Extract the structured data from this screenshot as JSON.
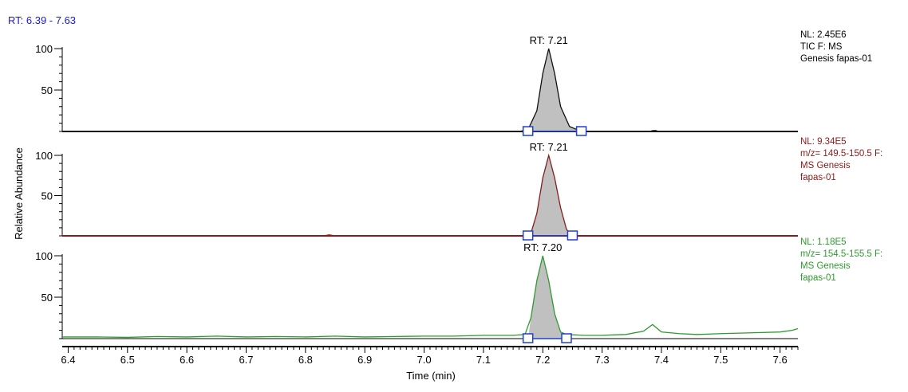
{
  "rt_range": "RT: 6.39 - 7.63",
  "ylabel": "Relative Abundance",
  "colors": {
    "rt_range_text": "#1a1acc",
    "marker": "#1f3fd6",
    "fill": "#c0c0c0"
  },
  "chart_data": [
    {
      "type": "line",
      "name": "panel-tic",
      "color": "#111111",
      "xlim": [
        6.39,
        7.63
      ],
      "ylim": [
        0,
        100
      ],
      "yticks": [
        50,
        100
      ],
      "info": [
        "NL: 2.45E6",
        "TIC F: MS",
        "Genesis fapas-01"
      ],
      "peak": {
        "label": "RT: 7.21",
        "rt": 7.21,
        "start": 7.175,
        "end": 7.265
      },
      "x": [
        6.39,
        7.16,
        7.175,
        7.19,
        7.2,
        7.21,
        7.22,
        7.23,
        7.245,
        7.265,
        7.38,
        7.385,
        7.39,
        7.395,
        7.63
      ],
      "y": [
        0,
        0,
        2,
        25,
        70,
        100,
        70,
        30,
        6,
        0,
        0,
        1,
        1.2,
        0,
        0
      ]
    },
    {
      "type": "line",
      "name": "panel-mz-150",
      "color": "#8b1a1a",
      "xlim": [
        6.39,
        7.63
      ],
      "ylim": [
        0,
        100
      ],
      "yticks": [
        50,
        100
      ],
      "info": [
        "NL: 9.34E5",
        "m/z= 149.5-150.5 F:",
        "MS Genesis",
        "fapas-01"
      ],
      "peak": {
        "label": "RT: 7.21",
        "rt": 7.21,
        "start": 7.175,
        "end": 7.25
      },
      "x": [
        6.39,
        6.83,
        6.84,
        6.85,
        7.17,
        7.18,
        7.19,
        7.2,
        7.21,
        7.22,
        7.23,
        7.24,
        7.25,
        7.63
      ],
      "y": [
        0,
        0,
        1.2,
        0,
        0,
        3,
        28,
        72,
        100,
        72,
        35,
        8,
        0,
        0
      ]
    },
    {
      "type": "line",
      "name": "panel-mz-155",
      "color": "#2e9a2e",
      "xlim": [
        6.39,
        7.63
      ],
      "ylim": [
        0,
        100
      ],
      "yticks": [
        50,
        100
      ],
      "info": [
        "NL: 1.18E5",
        "m/z= 154.5-155.5 F:",
        "MS Genesis",
        "fapas-01"
      ],
      "peak": {
        "label": "RT: 7.20",
        "rt": 7.2,
        "start": 7.175,
        "end": 7.24
      },
      "x": [
        6.39,
        6.45,
        6.5,
        6.55,
        6.6,
        6.65,
        6.7,
        6.75,
        6.8,
        6.85,
        6.9,
        6.95,
        7.0,
        7.05,
        7.1,
        7.15,
        7.17,
        7.18,
        7.19,
        7.2,
        7.21,
        7.22,
        7.23,
        7.24,
        7.27,
        7.3,
        7.34,
        7.37,
        7.385,
        7.4,
        7.43,
        7.46,
        7.5,
        7.55,
        7.6,
        7.62,
        7.63
      ],
      "y": [
        2,
        2,
        1.5,
        2.5,
        2,
        3,
        2,
        2.5,
        2,
        3,
        2,
        2.5,
        3,
        3,
        4,
        4,
        5,
        25,
        70,
        100,
        70,
        30,
        8,
        5,
        4,
        4,
        5,
        9,
        17,
        8,
        6,
        5,
        6,
        7,
        8,
        10,
        12
      ]
    }
  ],
  "xaxis": {
    "label": "Time (min)",
    "ticks": [
      "6.4",
      "6.5",
      "6.6",
      "6.7",
      "6.8",
      "6.9",
      "7.0",
      "7.1",
      "7.2",
      "7.3",
      "7.4",
      "7.5",
      "7.6"
    ]
  }
}
